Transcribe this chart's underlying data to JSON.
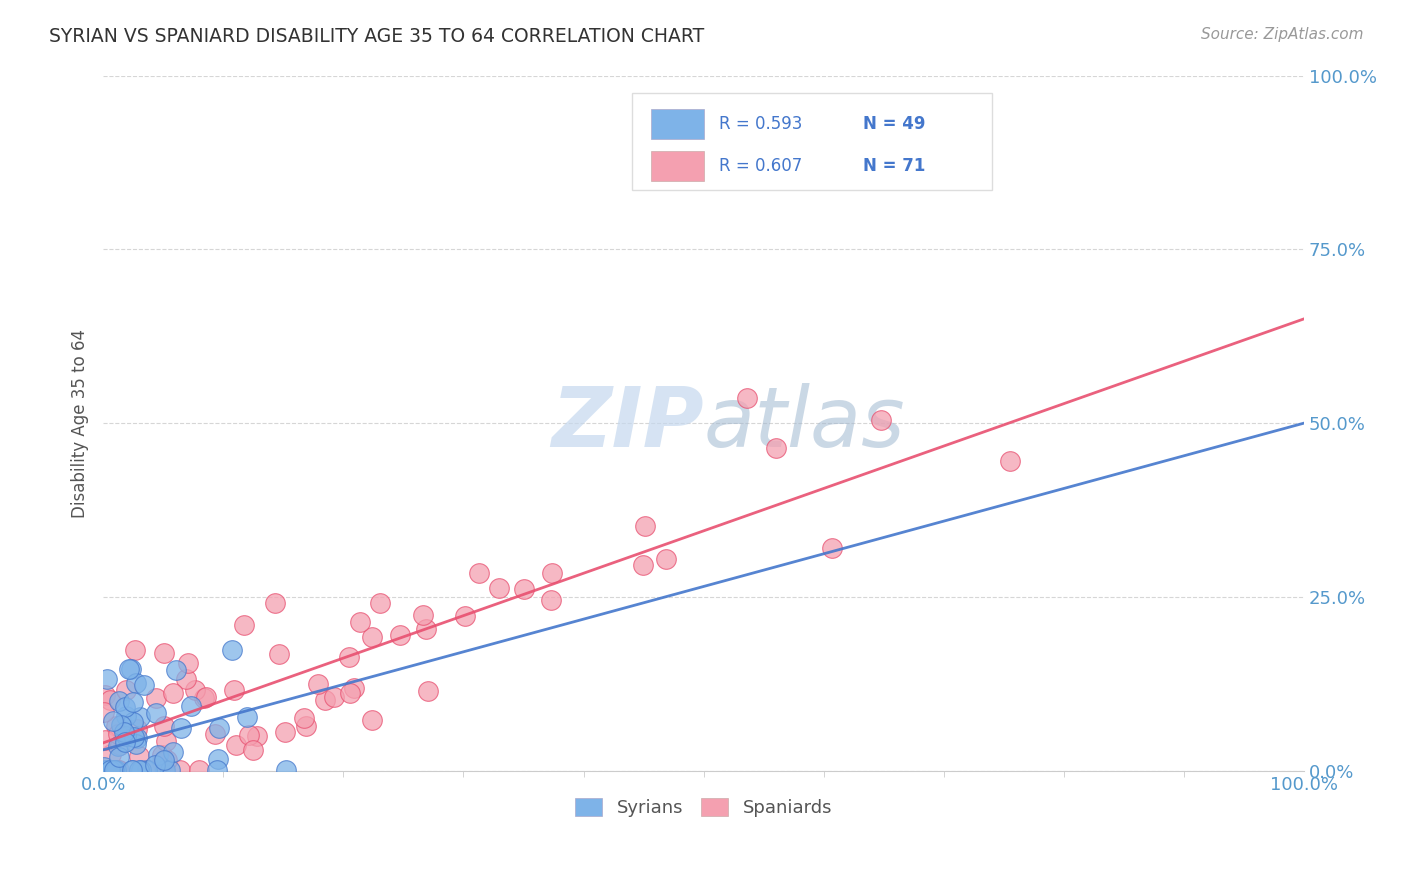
{
  "title": "SYRIAN VS SPANIARD DISABILITY AGE 35 TO 64 CORRELATION CHART",
  "source": "Source: ZipAtlas.com",
  "ylabel": "Disability Age 35 to 64",
  "xlim": [
    0,
    1
  ],
  "ylim": [
    0,
    1
  ],
  "ytick_vals": [
    0,
    0.25,
    0.5,
    0.75,
    1.0
  ],
  "ytick_labels": [
    "0.0%",
    "25.0%",
    "50.0%",
    "75.0%",
    "100.0%"
  ],
  "xtick_vals": [
    0,
    1
  ],
  "xtick_labels": [
    "0.0%",
    "100.0%"
  ],
  "syrian_R": 0.593,
  "syrian_N": 49,
  "spaniard_R": 0.607,
  "spaniard_N": 71,
  "syrian_color": "#7EB3E8",
  "spaniard_color": "#F4A0B0",
  "syrian_line_color": "#4477CC",
  "spaniard_line_color": "#E85070",
  "background_color": "#FFFFFF",
  "grid_color": "#CCCCCC",
  "axis_tick_color": "#5599CC",
  "title_color": "#333333",
  "legend_text_color": "#333333",
  "legend_value_color": "#4477CC",
  "watermark_color": "#C5D8EE",
  "source_color": "#999999"
}
